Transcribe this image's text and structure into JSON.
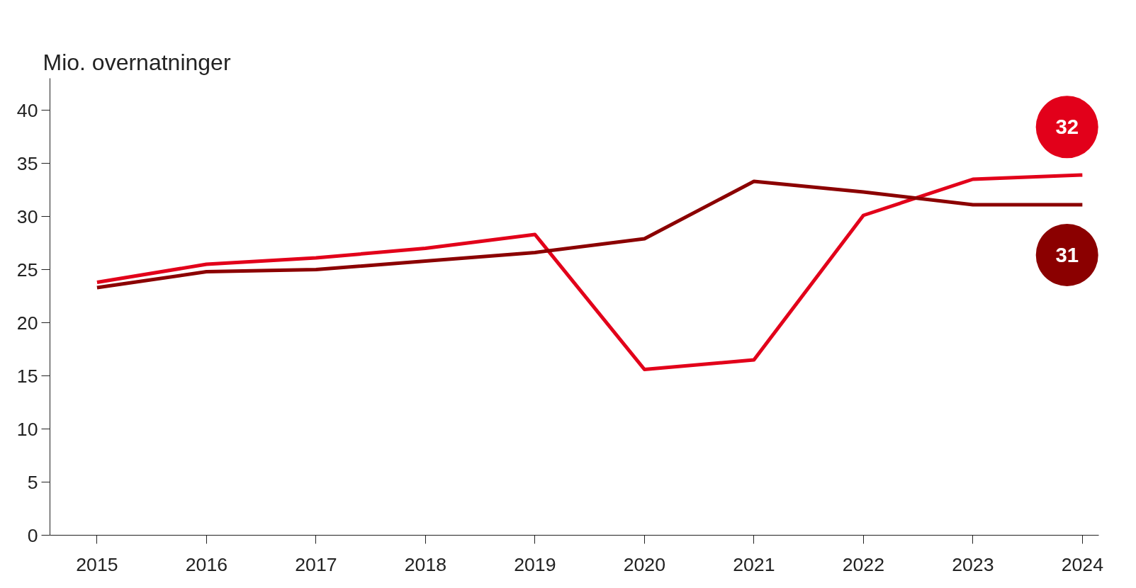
{
  "chart_data": {
    "type": "line",
    "ylabel": "Mio. overnatninger",
    "x": [
      2015,
      2016,
      2017,
      2018,
      2019,
      2020,
      2021,
      2022,
      2023,
      2024
    ],
    "series": [
      {
        "color": "#e2001a",
        "values": [
          23.8,
          25.5,
          26.1,
          27.0,
          28.3,
          15.6,
          16.5,
          30.1,
          33.5,
          33.9
        ]
      },
      {
        "color": "#8b0000",
        "values": [
          23.3,
          24.8,
          25.0,
          25.8,
          26.6,
          27.9,
          33.3,
          32.3,
          31.1,
          31.1
        ]
      }
    ],
    "annotations": [
      "32",
      "31"
    ],
    "xlim": [
      2014.57,
      2024.15
    ],
    "ylim": [
      0,
      43
    ],
    "xticks": [
      2015,
      2016,
      2017,
      2018,
      2019,
      2020,
      2021,
      2022,
      2023,
      2024
    ],
    "yticks": [
      0,
      5,
      10,
      15,
      20,
      25,
      30,
      35,
      40
    ],
    "grid": false,
    "marker": "none",
    "line_style": "solid"
  }
}
